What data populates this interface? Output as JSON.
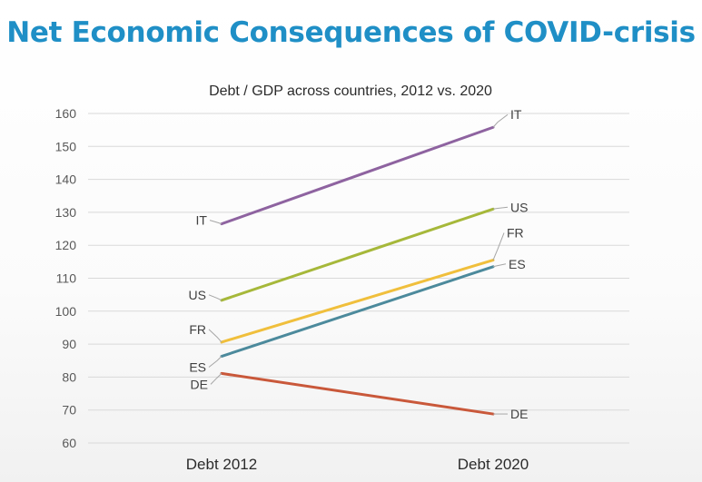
{
  "slide": {
    "title": "Net Economic Consequences of COVID-crisis"
  },
  "chart_data": {
    "type": "line",
    "title": "Debt / GDP across countries, 2012 vs. 2020",
    "xlabel": "",
    "ylabel": "",
    "categories": [
      "Debt 2012",
      "Debt 2020"
    ],
    "ylim": [
      60,
      160
    ],
    "yticks": [
      60,
      70,
      80,
      90,
      100,
      110,
      120,
      130,
      140,
      150,
      160
    ],
    "grid": true,
    "legend": "none (series labelled at line ends)",
    "series": [
      {
        "name": "IT",
        "values": [
          126.5,
          155.8
        ],
        "color": "#8e63a0"
      },
      {
        "name": "US",
        "values": [
          103.3,
          131.0
        ],
        "color": "#a6b83a"
      },
      {
        "name": "FR",
        "values": [
          90.6,
          115.5
        ],
        "color": "#f0bf3c"
      },
      {
        "name": "ES",
        "values": [
          86.3,
          113.5
        ],
        "color": "#4c8a9c"
      },
      {
        "name": "DE",
        "values": [
          81.1,
          68.8
        ],
        "color": "#c9583a"
      }
    ]
  }
}
